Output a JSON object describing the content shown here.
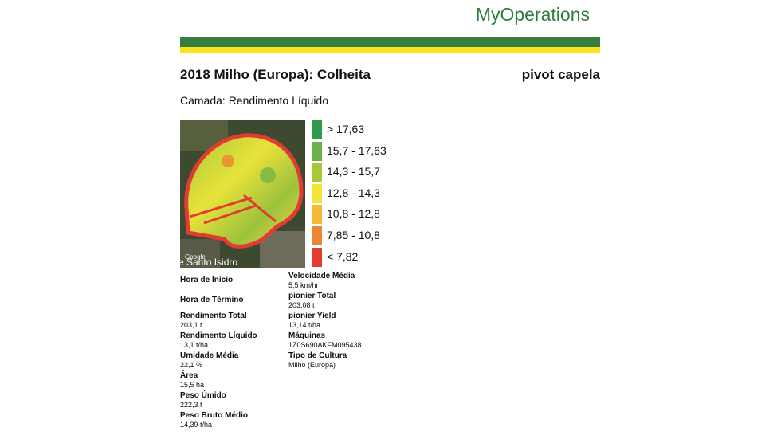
{
  "header": {
    "brand": "MyOperations"
  },
  "title": "2018 Milho (Europa): Colheita",
  "field": "pivot capela",
  "layer": "Camada: Rendimento Líquido",
  "map": {
    "place_label": "e Santo Isidro",
    "attribution": "Google"
  },
  "legend": [
    {
      "label": "> 17,63",
      "color": "#2e9a4a"
    },
    {
      "label": "15,7 - 17,63",
      "color": "#6cb147"
    },
    {
      "label": "14,3 - 15,7",
      "color": "#a8c83a"
    },
    {
      "label": "12,8 - 14,3",
      "color": "#f1e53a"
    },
    {
      "label": "10,8 - 12,8",
      "color": "#f4b93b"
    },
    {
      "label": "7,85 - 10,8",
      "color": "#ec8633"
    },
    {
      "label": "< 7,82",
      "color": "#e23b31"
    }
  ],
  "left_fields": [
    {
      "label": "Hora de Início"
    },
    {
      "label": "Hora de Término"
    },
    {
      "label": "Rendimento Total",
      "value": "203,1 t"
    },
    {
      "label": "Rendimento Líquido",
      "value": "13,1 t/ha"
    },
    {
      "label": "Umidade Média",
      "value": "22,1 %"
    },
    {
      "label": "Área",
      "value": "15,5 ha"
    },
    {
      "label": "Peso Úmido",
      "value": "222,3 t"
    },
    {
      "label": "Peso Bruto Médio",
      "value": "14,39 t/ha"
    }
  ],
  "right_fields": [
    {
      "label": "Velocidade Média",
      "value": "5,5 km/hr"
    },
    {
      "label": "pionier Total",
      "value": "203,08 t"
    },
    {
      "label": "pionier Yield",
      "value": "13,14 t/ha"
    },
    {
      "label": "Máquinas",
      "value": "1Z0S690AKFM095438"
    },
    {
      "label": "Tipo de Cultura",
      "value": "Milho (Europa)"
    }
  ]
}
